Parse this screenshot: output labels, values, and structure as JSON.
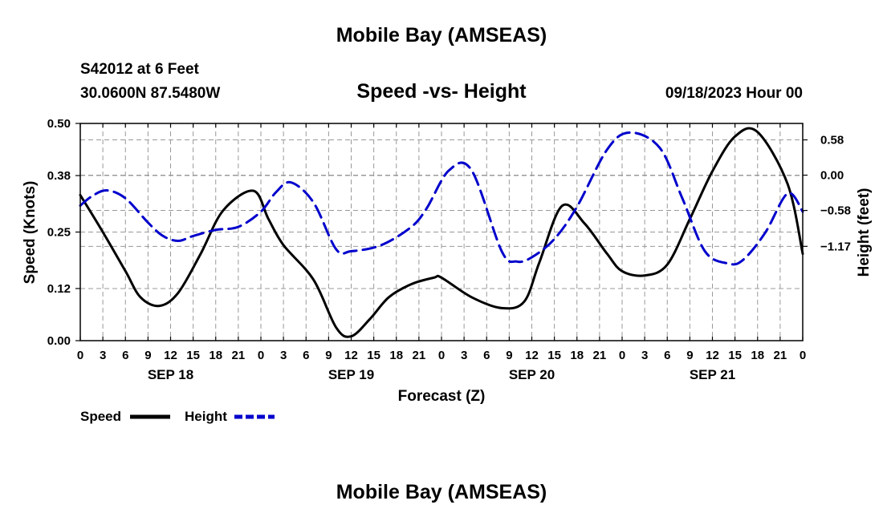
{
  "header": {
    "top_title": "Mobile Bay (AMSEAS)",
    "station": "S42012 at 6 Feet",
    "coords": "30.0600N  87.5480W",
    "chart_title": "Speed -vs- Height",
    "date": "09/18/2023 Hour 00"
  },
  "footer": {
    "title": "Mobile Bay (AMSEAS)"
  },
  "colors": {
    "speed": "#000000",
    "height": "#0000cc",
    "grid": "#999999"
  },
  "chart_data": {
    "type": "line",
    "title": "Speed -vs- Height",
    "xlabel": "Forecast (Z)",
    "ylabel": "Speed (Knots)",
    "y2label": "Height (feet)",
    "x_range_hours": [
      0,
      96
    ],
    "x_tick_step_hours": 3,
    "x_tick_labels": [
      "0",
      "3",
      "6",
      "9",
      "12",
      "15",
      "18",
      "21"
    ],
    "day_labels": [
      {
        "hour": 12,
        "label": "SEP 18"
      },
      {
        "hour": 36,
        "label": "SEP 19"
      },
      {
        "hour": 60,
        "label": "SEP 20"
      },
      {
        "hour": 84,
        "label": "SEP 21"
      }
    ],
    "ylim": [
      0,
      0.5
    ],
    "y_ticks": [
      0.0,
      0.12,
      0.25,
      0.38,
      0.5
    ],
    "y_tick_labels": [
      "0.00",
      "0.12",
      "0.25",
      "0.38",
      "0.50"
    ],
    "y2lim": [
      -2.72,
      0.85
    ],
    "y2_ticks": [
      0.58,
      0.0,
      -0.58,
      -1.17
    ],
    "y2_tick_labels": [
      "0.58",
      "0.00",
      "−0.58",
      "−1.17"
    ],
    "legend": {
      "position": "bottom-left",
      "speed_label": "Speed",
      "height_label": "Height"
    },
    "series": [
      {
        "name": "Speed",
        "axis": "left",
        "style": "solid",
        "x": [
          0,
          3,
          6,
          8,
          10.5,
          13,
          16,
          19,
          23,
          25,
          27,
          31,
          34,
          36,
          38.5,
          41,
          44,
          47,
          48,
          52,
          56,
          59,
          61,
          64,
          67,
          70,
          72,
          75,
          78,
          81,
          84,
          87,
          90,
          94,
          96
        ],
        "values": [
          0.335,
          0.25,
          0.16,
          0.1,
          0.08,
          0.11,
          0.2,
          0.3,
          0.345,
          0.28,
          0.22,
          0.14,
          0.03,
          0.01,
          0.05,
          0.1,
          0.13,
          0.145,
          0.145,
          0.1,
          0.075,
          0.09,
          0.18,
          0.31,
          0.27,
          0.2,
          0.16,
          0.15,
          0.175,
          0.28,
          0.39,
          0.47,
          0.48,
          0.36,
          0.2
        ]
      },
      {
        "name": "Height",
        "axis": "right",
        "style": "dashed",
        "x": [
          0,
          1.5,
          3.5,
          6,
          9,
          11,
          13,
          15,
          18,
          21,
          24,
          26,
          28,
          31,
          34,
          36,
          40,
          44,
          46,
          49,
          52,
          56,
          58,
          60,
          63,
          66,
          70,
          73,
          77,
          80,
          83,
          86,
          88,
          91,
          94,
          96
        ],
        "values": [
          -0.5,
          -0.35,
          -0.25,
          -0.38,
          -0.78,
          -1.0,
          -1.08,
          -1.0,
          -0.9,
          -0.85,
          -0.6,
          -0.28,
          -0.12,
          -0.45,
          -1.22,
          -1.25,
          -1.15,
          -0.85,
          -0.55,
          0.08,
          0.08,
          -1.25,
          -1.42,
          -1.35,
          -1.05,
          -0.52,
          0.42,
          0.7,
          0.45,
          -0.38,
          -1.25,
          -1.45,
          -1.4,
          -0.95,
          -0.3,
          -0.6
        ]
      }
    ]
  }
}
